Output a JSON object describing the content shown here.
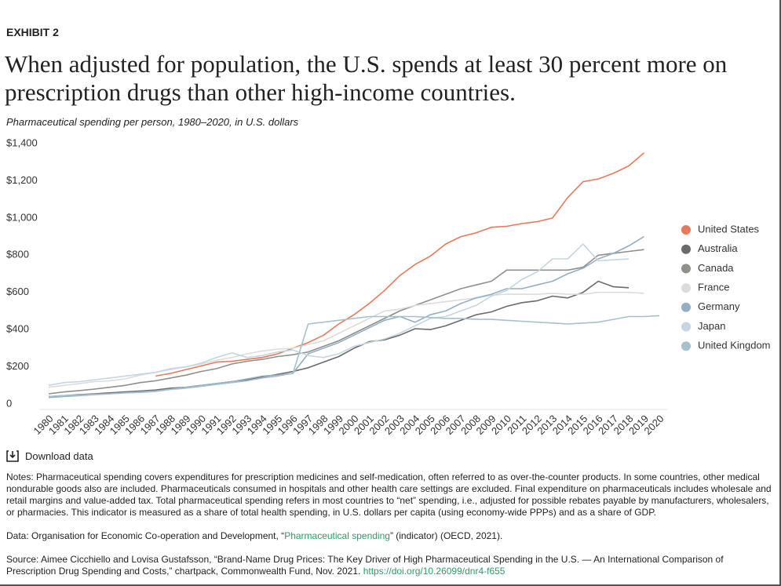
{
  "exhibit": "EXHIBIT 2",
  "download": "Download data",
  "notes": "Notes: Pharmaceutical spending covers expenditures for prescription medicines and self-medication, often referred to as over-the-counter products. In some countries, other medical nondurable goods also are included. Pharmaceuticals consumed in hospitals and other health care settings are excluded. Final expenditure on pharmaceuticals includes wholesale and retail margins and value-added tax. Total pharmaceutical spending refers in most countries to “net” spending, i.e., adjusted for possible rebates payable by manufacturers, wholesalers, or pharmacies. This indicator is measured as a share of total health spending, in U.S. dollars per capita (using economy-wide PPPs) and as a share of GDP.",
  "data_source": {
    "before": "Data: Organisation for Economic Co-operation and Development, “",
    "link": "Pharmaceutical spending",
    "after": "” (indicator) (OECD, 2021)."
  },
  "source": {
    "text": "Source: Aimee Cicchiello and Lovisa Gustafsson, “Brand-Name Drug Prices: The Key Driver of High Pharmaceutical Spending in the U.S. — An International Comparison of Prescription Drug Spending and Costs,” chartpack, Commonwealth Fund, Nov. 2021.",
    "link": "https://doi.org/10.26099/dnr4-f655"
  },
  "chart_data": {
    "type": "line",
    "title": "When adjusted for population, the U.S. spends at least 30 percent more on prescription drugs than other high-income countries.",
    "subtitle": "Pharmaceutical spending per person, 1980–2020, in U.S. dollars",
    "categories": [
      "1980",
      "1981",
      "1982",
      "1983",
      "1984",
      "1985",
      "1986",
      "1987",
      "1988",
      "1989",
      "1990",
      "1991",
      "1992",
      "1993",
      "1994",
      "1995",
      "1996",
      "1997",
      "1998",
      "1999",
      "2000",
      "2001",
      "2002",
      "2003",
      "2004",
      "2005",
      "2006",
      "2007",
      "2008",
      "2009",
      "2010",
      "2011",
      "2012",
      "2013",
      "2014",
      "2015",
      "2016",
      "2017",
      "2018",
      "2019",
      "2020"
    ],
    "ylim": [
      0,
      1400
    ],
    "yticks": [
      0,
      {
        "value": 200,
        "label": "$200"
      },
      {
        "value": 400,
        "label": "$400"
      },
      {
        "value": 600,
        "label": "$600"
      },
      {
        "value": 800,
        "label": "$800"
      },
      {
        "value": 1000,
        "label": "$1,000"
      },
      {
        "value": 1200,
        "label": "$1,200"
      },
      {
        "value": 1400,
        "label": "$1,400"
      }
    ],
    "legend": "right",
    "series": [
      {
        "name": "United States",
        "color": "#e8795a",
        "values": [
          null,
          null,
          null,
          null,
          null,
          null,
          null,
          150,
          165,
          185,
          205,
          225,
          230,
          240,
          250,
          270,
          300,
          330,
          370,
          430,
          480,
          540,
          610,
          690,
          750,
          795,
          860,
          900,
          920,
          950,
          955,
          970,
          980,
          1000,
          1110,
          1195,
          1210,
          1240,
          1280,
          1350,
          null
        ]
      },
      {
        "name": "Australia",
        "color": "#6b6b6b",
        "values": [
          40,
          45,
          50,
          55,
          60,
          65,
          70,
          75,
          85,
          90,
          100,
          110,
          120,
          130,
          145,
          160,
          175,
          195,
          225,
          255,
          300,
          335,
          345,
          370,
          405,
          400,
          420,
          450,
          480,
          495,
          525,
          545,
          555,
          580,
          570,
          600,
          660,
          630,
          625,
          null,
          null
        ]
      },
      {
        "name": "Canada",
        "color": "#8f8f8c",
        "values": [
          55,
          65,
          72,
          80,
          90,
          100,
          115,
          125,
          140,
          155,
          175,
          190,
          215,
          230,
          240,
          255,
          265,
          280,
          310,
          340,
          380,
          420,
          460,
          500,
          530,
          560,
          590,
          620,
          640,
          660,
          720,
          720,
          720,
          720,
          720,
          735,
          800,
          810,
          820,
          830,
          null
        ]
      },
      {
        "name": "France",
        "color": "#dcdcdc",
        "values": [
          90,
          100,
          110,
          120,
          125,
          135,
          155,
          170,
          185,
          200,
          215,
          235,
          250,
          270,
          285,
          295,
          300,
          320,
          340,
          380,
          420,
          460,
          500,
          510,
          530,
          540,
          550,
          560,
          570,
          585,
          590,
          590,
          590,
          595,
          590,
          590,
          600,
          600,
          600,
          595,
          null
        ]
      },
      {
        "name": "Germany",
        "color": "#94afc5",
        "values": [
          35,
          40,
          45,
          50,
          55,
          60,
          65,
          70,
          80,
          90,
          100,
          110,
          120,
          135,
          150,
          155,
          165,
          270,
          300,
          330,
          370,
          410,
          450,
          470,
          440,
          480,
          500,
          540,
          570,
          590,
          620,
          620,
          640,
          660,
          700,
          730,
          780,
          810,
          850,
          900,
          null
        ]
      },
      {
        "name": "Japan",
        "color": "#c5d6e0",
        "values": [
          100,
          115,
          120,
          130,
          140,
          150,
          160,
          170,
          190,
          200,
          220,
          250,
          275,
          250,
          260,
          280,
          290,
          260,
          250,
          270,
          310,
          330,
          350,
          380,
          420,
          460,
          470,
          500,
          530,
          580,
          610,
          670,
          710,
          780,
          780,
          860,
          770,
          775,
          780,
          null,
          null
        ]
      },
      {
        "name": "United Kingdom",
        "color": "#a6c0cc",
        "values": [
          40,
          45,
          48,
          52,
          55,
          60,
          62,
          68,
          78,
          85,
          95,
          105,
          115,
          125,
          140,
          150,
          165,
          430,
          440,
          450,
          460,
          470,
          470,
          470,
          470,
          465,
          460,
          460,
          455,
          455,
          450,
          445,
          440,
          435,
          430,
          435,
          440,
          455,
          470,
          470,
          475
        ]
      }
    ]
  }
}
